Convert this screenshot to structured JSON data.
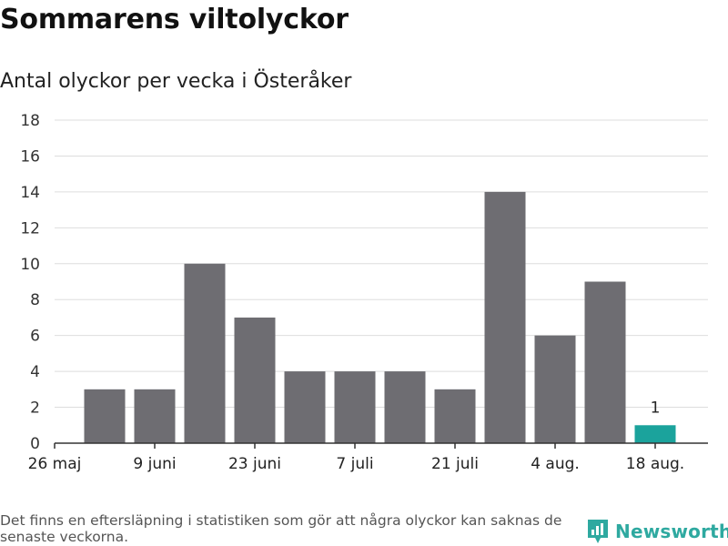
{
  "title": "Sommarens viltolyckor",
  "subtitle": "Antal olyckor per vecka i Österåker",
  "footnote": "Det finns en eftersläpning i statistiken som gör att några olyckor kan saknas de senaste veckorna.",
  "brand": {
    "name": "Newsworthy",
    "icon": "newsworthy-logo-icon",
    "color": "#2ea9a0"
  },
  "chart_data": {
    "type": "bar",
    "title": "Sommarens viltolyckor",
    "subtitle": "Antal olyckor per vecka i Österåker",
    "xlabel": "",
    "ylabel": "",
    "ylim": [
      0,
      18
    ],
    "yticks": [
      0,
      2,
      4,
      6,
      8,
      10,
      12,
      14,
      16,
      18
    ],
    "grid": true,
    "x_tick_labels": [
      "26 maj",
      "9 juni",
      "23 juni",
      "7 juli",
      "21 juli",
      "4 aug.",
      "18 aug."
    ],
    "values": [
      3,
      3,
      10,
      7,
      4,
      4,
      4,
      3,
      14,
      6,
      9,
      1
    ],
    "highlight_index": 11,
    "highlight_label": "1",
    "colors": {
      "bar": "#6e6d72",
      "highlight": "#1ba39c",
      "grid": "#dddddd",
      "axis": "#333333"
    }
  }
}
